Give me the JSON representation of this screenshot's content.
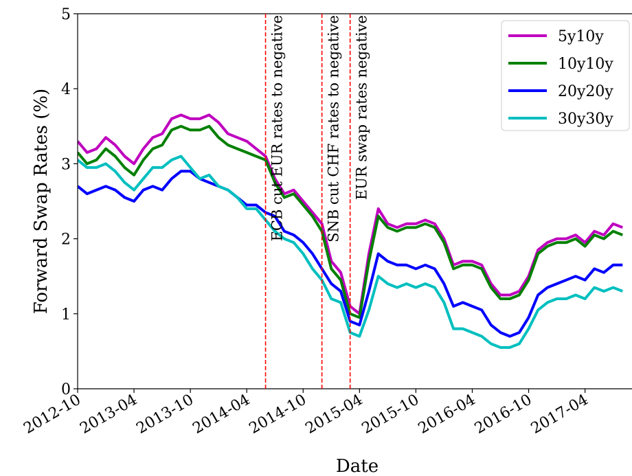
{
  "chart_data": {
    "type": "line",
    "xlabel": "Date",
    "ylabel": "Forward Swap Rates (%)",
    "x": [
      "2012-10",
      "2012-11",
      "2012-12",
      "2013-01",
      "2013-02",
      "2013-03",
      "2013-04",
      "2013-05",
      "2013-06",
      "2013-07",
      "2013-08",
      "2013-09",
      "2013-10",
      "2013-11",
      "2013-12",
      "2014-01",
      "2014-02",
      "2014-03",
      "2014-04",
      "2014-05",
      "2014-06",
      "2014-07",
      "2014-08",
      "2014-09",
      "2014-10",
      "2014-11",
      "2014-12",
      "2015-01",
      "2015-02",
      "2015-03",
      "2015-04",
      "2015-05",
      "2015-06",
      "2015-07",
      "2015-08",
      "2015-09",
      "2015-10",
      "2015-11",
      "2015-12",
      "2016-01",
      "2016-02",
      "2016-03",
      "2016-04",
      "2016-05",
      "2016-06",
      "2016-07",
      "2016-08",
      "2016-09",
      "2016-10",
      "2016-11",
      "2016-12",
      "2017-01",
      "2017-02",
      "2017-03",
      "2017-04",
      "2017-05",
      "2017-06",
      "2017-07",
      "2017-08"
    ],
    "series": [
      {
        "name": "5y10y",
        "color": "#bf00bf",
        "values": [
          3.3,
          3.15,
          3.2,
          3.35,
          3.25,
          3.1,
          3.0,
          3.2,
          3.35,
          3.4,
          3.6,
          3.65,
          3.6,
          3.6,
          3.65,
          3.55,
          3.4,
          3.35,
          3.3,
          3.2,
          3.1,
          2.8,
          2.6,
          2.65,
          2.5,
          2.35,
          2.2,
          1.7,
          1.55,
          1.1,
          1.0,
          1.8,
          2.4,
          2.2,
          2.15,
          2.2,
          2.2,
          2.25,
          2.2,
          2.0,
          1.65,
          1.7,
          1.7,
          1.65,
          1.4,
          1.25,
          1.25,
          1.3,
          1.5,
          1.85,
          1.95,
          2.0,
          2.0,
          2.05,
          1.95,
          2.1,
          2.05,
          2.2,
          2.15
        ]
      },
      {
        "name": "10y10y",
        "color": "#008000",
        "values": [
          3.15,
          3.0,
          3.05,
          3.2,
          3.1,
          2.95,
          2.85,
          3.05,
          3.2,
          3.25,
          3.45,
          3.5,
          3.45,
          3.45,
          3.5,
          3.35,
          3.25,
          3.2,
          3.15,
          3.1,
          3.05,
          2.75,
          2.55,
          2.6,
          2.45,
          2.3,
          2.1,
          1.6,
          1.45,
          1.0,
          0.95,
          1.7,
          2.3,
          2.15,
          2.1,
          2.15,
          2.15,
          2.2,
          2.15,
          1.95,
          1.6,
          1.65,
          1.65,
          1.6,
          1.35,
          1.2,
          1.2,
          1.25,
          1.45,
          1.8,
          1.9,
          1.95,
          1.95,
          2.0,
          1.9,
          2.05,
          2.0,
          2.1,
          2.05
        ]
      },
      {
        "name": "20y20y",
        "color": "#0000ff",
        "values": [
          2.7,
          2.6,
          2.65,
          2.7,
          2.65,
          2.55,
          2.5,
          2.65,
          2.7,
          2.65,
          2.8,
          2.9,
          2.9,
          2.8,
          2.75,
          2.7,
          2.65,
          2.55,
          2.45,
          2.45,
          2.35,
          2.3,
          2.1,
          2.05,
          1.95,
          1.8,
          1.6,
          1.4,
          1.3,
          0.9,
          0.85,
          1.3,
          1.8,
          1.7,
          1.65,
          1.65,
          1.6,
          1.65,
          1.6,
          1.4,
          1.1,
          1.15,
          1.1,
          1.05,
          0.85,
          0.75,
          0.7,
          0.75,
          0.95,
          1.25,
          1.35,
          1.4,
          1.45,
          1.5,
          1.45,
          1.6,
          1.55,
          1.65,
          1.65
        ]
      },
      {
        "name": "30y30y",
        "color": "#00bfbf",
        "values": [
          3.05,
          2.95,
          2.95,
          3.0,
          2.9,
          2.75,
          2.65,
          2.8,
          2.95,
          2.95,
          3.05,
          3.1,
          2.95,
          2.8,
          2.85,
          2.7,
          2.65,
          2.55,
          2.4,
          2.4,
          2.25,
          2.1,
          2.0,
          1.95,
          1.8,
          1.6,
          1.45,
          1.2,
          1.15,
          0.75,
          0.7,
          1.05,
          1.5,
          1.4,
          1.35,
          1.4,
          1.35,
          1.4,
          1.35,
          1.15,
          0.8,
          0.8,
          0.75,
          0.7,
          0.6,
          0.55,
          0.55,
          0.6,
          0.8,
          1.05,
          1.15,
          1.2,
          1.2,
          1.25,
          1.2,
          1.35,
          1.3,
          1.35,
          1.3
        ]
      }
    ],
    "annotations": [
      {
        "x": "2014-06",
        "label": "ECB cut EUR rates to negative",
        "color": "#ff0000"
      },
      {
        "x": "2014-12",
        "label": "SNB cut CHF rates to negative",
        "color": "#ff0000"
      },
      {
        "x": "2015-03",
        "label": "EUR swap rates negative",
        "color": "#ff0000"
      }
    ],
    "xlim": [
      "2012-10",
      "2017-09"
    ],
    "xticks": [
      "2012-10",
      "2013-04",
      "2013-10",
      "2014-04",
      "2014-10",
      "2015-04",
      "2015-10",
      "2016-04",
      "2016-10",
      "2017-04"
    ],
    "ylim": [
      0,
      5
    ],
    "yticks": [
      0,
      1,
      2,
      3,
      4,
      5
    ],
    "legend": "upper right"
  }
}
